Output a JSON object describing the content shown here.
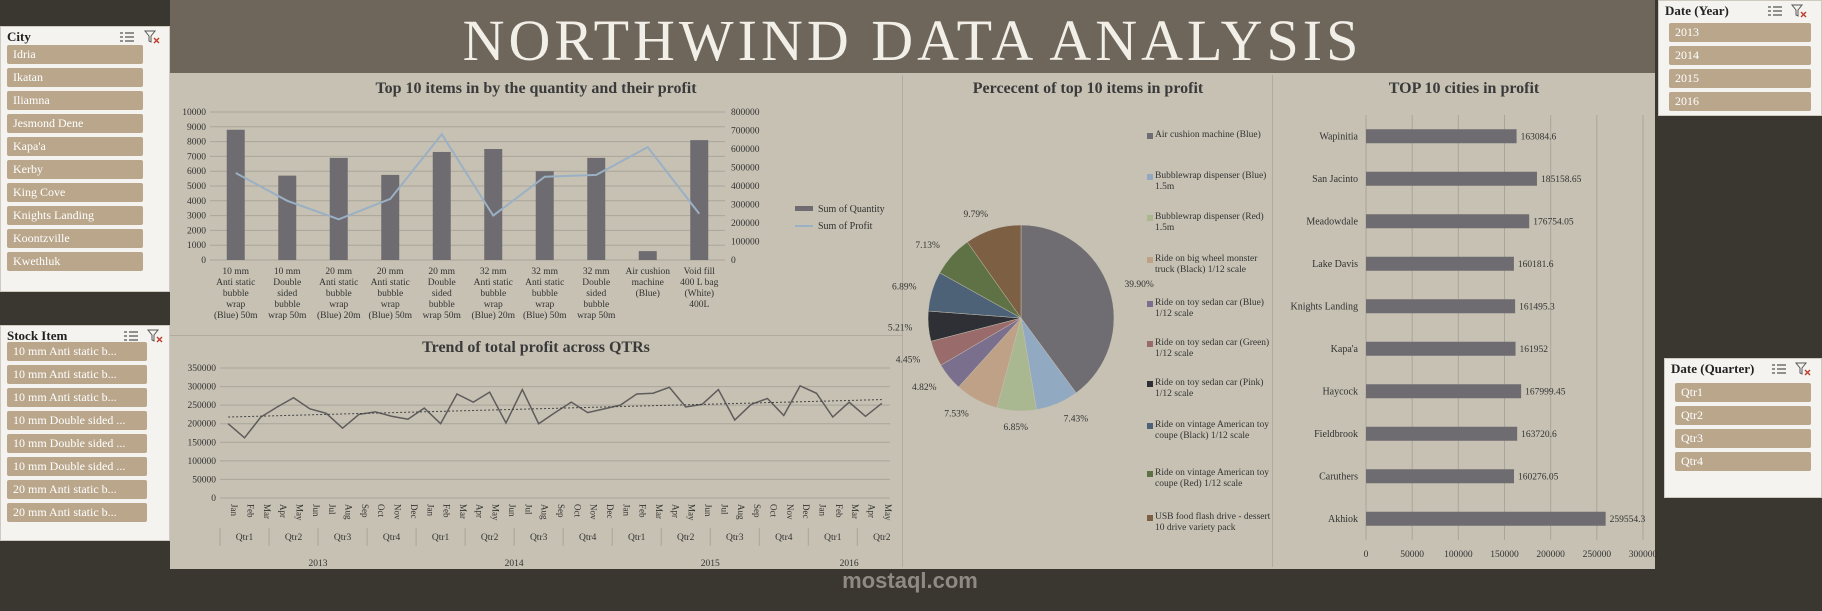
{
  "title": "NORTHWIND  DATA  ANALYSIS",
  "watermark": "mostaql.com",
  "watermark_small": "",
  "colors": {
    "bar": "#6e6c70",
    "line": "#9ab0c4",
    "item": "#b9a68b"
  },
  "slicers": {
    "city": {
      "header": "City",
      "items": [
        "Idria",
        "Ikatan",
        "Iliamna",
        "Jesmond Dene",
        "Kapa'a",
        "Kerby",
        "King Cove",
        "Knights Landing",
        "Koontzville",
        "Kwethluk"
      ]
    },
    "stock": {
      "header": "Stock Item",
      "items": [
        "10 mm Anti static b...",
        "10 mm Anti static b...",
        "10 mm Anti static b...",
        "10 mm Double sided ...",
        "10 mm Double sided ...",
        "10 mm Double sided ...",
        "20 mm Anti static b...",
        "20 mm Anti static b..."
      ]
    },
    "year": {
      "header": "Date (Year)",
      "items": [
        "2013",
        "2014",
        "2015",
        "2016"
      ]
    },
    "quarter": {
      "header": "Date (Quarter)",
      "items": [
        "Qtr1",
        "Qtr2",
        "Qtr3",
        "Qtr4"
      ]
    }
  },
  "chart_data": [
    {
      "type": "bar",
      "title": "Top 10 items in by the quantity and their profit",
      "categories": [
        [
          "10 mm",
          "Anti static",
          "bubble",
          "wrap",
          "(Blue) 50m"
        ],
        [
          "10 mm",
          "Double",
          "sided",
          "bubble",
          "wrap 50m"
        ],
        [
          "20 mm",
          "Anti static",
          "bubble",
          "wrap",
          "(Blue) 20m"
        ],
        [
          "20 mm",
          "Anti static",
          "bubble",
          "wrap",
          "(Blue) 50m"
        ],
        [
          "20 mm",
          "Double",
          "sided",
          "bubble",
          "wrap 50m"
        ],
        [
          "32 mm",
          "Anti static",
          "bubble",
          "wrap",
          "(Blue) 20m"
        ],
        [
          "32 mm",
          "Anti static",
          "bubble",
          "wrap",
          "(Blue) 50m"
        ],
        [
          "32 mm",
          "Double",
          "sided",
          "bubble",
          "wrap 50m"
        ],
        [
          "Air cushion",
          "machine",
          "(Blue)"
        ],
        [
          "Void fill",
          "400 L bag",
          "(White)",
          "400L"
        ]
      ],
      "series": [
        {
          "name": "Sum of Quantity",
          "values": [
            8800,
            5700,
            6900,
            5750,
            7300,
            7500,
            6000,
            6900,
            600,
            8100
          ]
        },
        {
          "name": "Sum of Profit",
          "values": [
            470000,
            320000,
            220000,
            330000,
            680000,
            240000,
            450000,
            460000,
            610000,
            250000
          ]
        }
      ],
      "ylim": [
        0,
        10000
      ],
      "yticks": [
        "10000",
        "9000",
        "8000",
        "7000",
        "6000",
        "5000",
        "4000",
        "3000",
        "2000",
        "1000",
        "0"
      ],
      "y2lim": [
        0,
        800000
      ],
      "y2ticks": [
        "800000",
        "700000",
        "600000",
        "500000",
        "400000",
        "300000",
        "200000",
        "100000",
        "0"
      ]
    },
    {
      "type": "line",
      "title": "Trend of total profit across QTRs",
      "ylim": [
        0,
        350000
      ],
      "yticks": [
        "350000",
        "300000",
        "250000",
        "200000",
        "150000",
        "100000",
        "50000",
        "0"
      ],
      "months": [
        "Jan",
        "Feb",
        "Mar",
        "Apr",
        "May",
        "Jun",
        "Jul",
        "Aug",
        "Sep",
        "Oct",
        "Nov",
        "Dec",
        "Jan",
        "Feb",
        "Mar",
        "Apr",
        "May",
        "Jun",
        "Jul",
        "Aug",
        "Sep",
        "Oct",
        "Nov",
        "Dec",
        "Jan",
        "Feb",
        "Mar",
        "Apr",
        "May",
        "Jun",
        "Jul",
        "Aug",
        "Sep",
        "Oct",
        "Nov",
        "Dec",
        "Jan",
        "Feb",
        "Mar",
        "Apr",
        "May"
      ],
      "quarters": [
        "Qtr1",
        "Qtr2",
        "Qtr3",
        "Qtr4",
        "Qtr1",
        "Qtr2",
        "Qtr3",
        "Qtr4",
        "Qtr1",
        "Qtr2",
        "Qtr3",
        "Qtr4",
        "Qtr1",
        "Qtr2"
      ],
      "years": [
        "2013",
        "2014",
        "2015",
        "2016"
      ],
      "values": [
        200000,
        162000,
        218000,
        245000,
        270000,
        240000,
        228000,
        188000,
        225000,
        232000,
        220000,
        212000,
        242000,
        200000,
        280000,
        258000,
        285000,
        202000,
        292000,
        200000,
        230000,
        258000,
        230000,
        240000,
        250000,
        280000,
        282000,
        298000,
        245000,
        252000,
        292000,
        210000,
        252000,
        268000,
        222000,
        302000,
        282000,
        218000,
        258000,
        220000,
        255000
      ],
      "trend": [
        218000,
        265000
      ]
    },
    {
      "type": "pie",
      "title": "Percecent of top 10 items in profit",
      "labels": [
        "Air cushion machine (Blue)",
        "Bubblewrap dispenser (Blue) 1.5m",
        "Bubblewrap dispenser (Red) 1.5m",
        "Ride on big wheel monster truck (Black) 1/12 scale",
        "Ride on toy sedan car (Blue) 1/12 scale",
        "Ride on toy sedan car (Green) 1/12 scale",
        "Ride on toy sedan car (Pink) 1/12 scale",
        "Ride on vintage American toy coupe (Black) 1/12 scale",
        "Ride on vintage American toy coupe (Red) 1/12 scale",
        "USB food flash drive - dessert 10 drive variety pack"
      ],
      "values": [
        39.9,
        7.43,
        6.85,
        7.53,
        4.82,
        4.45,
        5.21,
        6.89,
        7.13,
        9.79
      ],
      "value_labels": [
        "39.90%",
        "7.43%",
        "6.85%",
        "7.53%",
        "4.82%",
        "4.45%",
        "5.21%",
        "6.89%",
        "7.13%",
        "9.79%"
      ],
      "colors": [
        "#6f6d72",
        "#92a9c2",
        "#a9b890",
        "#bfa188",
        "#7b6f8e",
        "#9a6b6b",
        "#2f3035",
        "#4d6277",
        "#5f7246",
        "#7d5f43"
      ]
    },
    {
      "type": "bar",
      "title": "TOP 10 cities in profit",
      "categories": [
        "Wapinitia",
        "San Jacinto",
        "Meadowdale",
        "Lake Davis",
        "Knights Landing",
        "Kapa'a",
        "Haycock",
        "Fieldbrook",
        "Caruthers",
        "Akhiok"
      ],
      "values": [
        163084.6,
        185158.65,
        176754.05,
        160181.6,
        161495.3,
        161952,
        167999.45,
        163720.6,
        160276.05,
        259554.3
      ],
      "value_labels": [
        "163084.6",
        "185158.65",
        "176754.05",
        "160181.6",
        "161495.3",
        "161952",
        "167999.45",
        "163720.6",
        "160276.05",
        "259554.3"
      ],
      "xlim": [
        0,
        300000
      ],
      "xticks": [
        "0",
        "50000",
        "100000",
        "150000",
        "200000",
        "250000",
        "300000"
      ]
    }
  ]
}
